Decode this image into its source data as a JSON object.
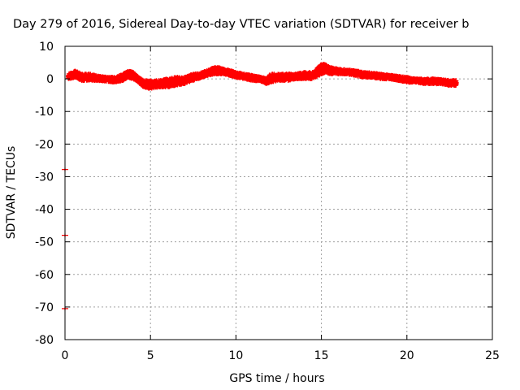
{
  "chart_data": {
    "type": "scatter",
    "title": "Day 279 of 2016, Sidereal Day-to-day VTEC variation (SDTVAR) for receiver b",
    "xlabel": "GPS time / hours",
    "ylabel": "SDTVAR / TECUs",
    "xlim": [
      0,
      25
    ],
    "ylim": [
      -80,
      10
    ],
    "x_ticks": [
      0,
      5,
      10,
      15,
      20,
      25
    ],
    "x_tick_labels": [
      "0",
      "5",
      "10",
      "15",
      "20",
      "25"
    ],
    "y_ticks": [
      10,
      0,
      -10,
      -20,
      -30,
      -40,
      -50,
      -60,
      -70,
      -80
    ],
    "y_tick_labels": [
      "10",
      "0",
      "-10",
      "-20",
      "-30",
      "-40",
      "-50",
      "-60",
      "-70",
      "-80"
    ],
    "grid": true,
    "legend": "none",
    "marker": "+",
    "color": "#ff0000",
    "series": [
      {
        "band": {
          "x": [
            0.2,
            0.6,
            1.0,
            1.5,
            2.0,
            2.5,
            3.0,
            3.4,
            3.7,
            4.0,
            4.3,
            4.6,
            5.0,
            5.5,
            6.0,
            6.5,
            7.0,
            7.5,
            8.0,
            8.3,
            8.7,
            9.0,
            9.3,
            9.7,
            10.0,
            10.5,
            11.0,
            11.5,
            11.8,
            12.0,
            12.5,
            13.0,
            13.5,
            14.0,
            14.5,
            15.0,
            15.2,
            15.5,
            16.0,
            16.5,
            17.0,
            17.5,
            18.0,
            18.5,
            19.0,
            19.5,
            20.0,
            20.5,
            21.0,
            21.5,
            22.0,
            22.5,
            22.9
          ],
          "y_low": [
            0.0,
            0.5,
            -0.5,
            -0.5,
            -0.5,
            -0.8,
            -1.0,
            -0.5,
            0.5,
            0.0,
            -1.0,
            -2.5,
            -3.0,
            -2.5,
            -2.5,
            -2.0,
            -1.5,
            -0.5,
            0.5,
            1.0,
            1.5,
            1.5,
            1.5,
            1.0,
            0.5,
            0.0,
            -0.5,
            -0.8,
            -1.5,
            -1.0,
            -0.5,
            -0.5,
            0.0,
            0.0,
            0.0,
            1.5,
            2.0,
            1.5,
            1.5,
            1.5,
            1.0,
            0.5,
            0.5,
            0.0,
            0.0,
            -0.5,
            -1.0,
            -1.0,
            -1.5,
            -1.5,
            -1.5,
            -2.0,
            -2.0
          ],
          "y_high": [
            1.5,
            2.5,
            1.5,
            1.5,
            0.8,
            0.5,
            0.5,
            1.5,
            2.5,
            2.0,
            0.5,
            -0.5,
            -0.5,
            -0.5,
            0.0,
            0.5,
            0.5,
            1.5,
            2.0,
            2.5,
            3.5,
            3.5,
            3.0,
            2.5,
            2.0,
            1.5,
            1.0,
            0.5,
            0.0,
            1.5,
            1.5,
            1.5,
            1.5,
            2.0,
            2.0,
            4.5,
            4.5,
            3.5,
            3.0,
            2.8,
            2.5,
            2.0,
            1.8,
            1.5,
            1.2,
            0.8,
            0.5,
            0.0,
            0.0,
            0.0,
            -0.2,
            -0.5,
            -0.5
          ]
        },
        "outliers": [
          {
            "x": 0.0,
            "y": -27.8
          },
          {
            "x": 0.0,
            "y": -48.0
          },
          {
            "x": 0.0,
            "y": -70.5
          }
        ]
      }
    ]
  }
}
